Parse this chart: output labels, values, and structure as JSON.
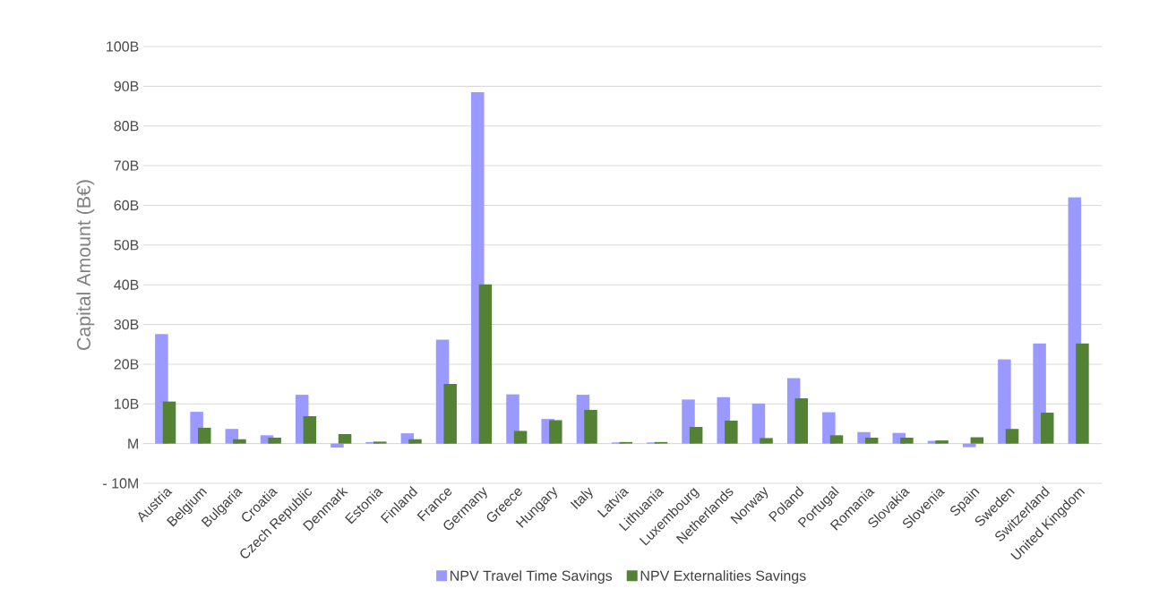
{
  "chart_data": {
    "type": "bar",
    "ylabel": "Capital Amount (B€)",
    "categories": [
      "Austria",
      "Belgium",
      "Bulgaria",
      "Croatia",
      "Czech Republic",
      "Denmark",
      "Estonia",
      "Finland",
      "France",
      "Germany",
      "Greece",
      "Hungary",
      "Italy",
      "Latvia",
      "Lithuania",
      "Luxembourg",
      "Netherlands",
      "Norway",
      "Poland",
      "Portugal",
      "Romania",
      "Slovakia",
      "Slovenia",
      "Spain",
      "Sweden",
      "Switzerland",
      "United Kingdom"
    ],
    "series": [
      {
        "name": "NPV Travel Time Savings",
        "color": "#9999ff",
        "values": [
          27.6,
          8.0,
          3.7,
          2.1,
          12.3,
          -1.0,
          0.4,
          2.6,
          26.2,
          88.5,
          12.4,
          6.2,
          12.3,
          0.3,
          0.3,
          11.1,
          11.7,
          10.1,
          16.5,
          7.9,
          2.9,
          2.7,
          0.7,
          -0.9,
          21.2,
          25.2,
          62.0
        ]
      },
      {
        "name": "NPV Externalities Savings",
        "color": "#548235",
        "values": [
          10.6,
          4.0,
          1.1,
          1.5,
          6.9,
          2.4,
          0.5,
          1.1,
          15.0,
          40.1,
          3.2,
          5.9,
          8.5,
          0.4,
          0.4,
          4.2,
          5.8,
          1.4,
          11.4,
          2.1,
          1.5,
          1.5,
          0.8,
          1.6,
          3.7,
          7.8,
          25.2
        ]
      }
    ],
    "ylim": [
      -10,
      100
    ],
    "yticks": [
      {
        "value": -10,
        "label": "- 10M"
      },
      {
        "value": 0,
        "label": "M"
      },
      {
        "value": 10,
        "label": "10B"
      },
      {
        "value": 20,
        "label": "20B"
      },
      {
        "value": 30,
        "label": "30B"
      },
      {
        "value": 40,
        "label": "40B"
      },
      {
        "value": 50,
        "label": "50B"
      },
      {
        "value": 60,
        "label": "60B"
      },
      {
        "value": 70,
        "label": "70B"
      },
      {
        "value": 80,
        "label": "80B"
      },
      {
        "value": 90,
        "label": "90B"
      },
      {
        "value": 100,
        "label": "100B"
      }
    ],
    "grid": "y",
    "legend": "bottom"
  }
}
